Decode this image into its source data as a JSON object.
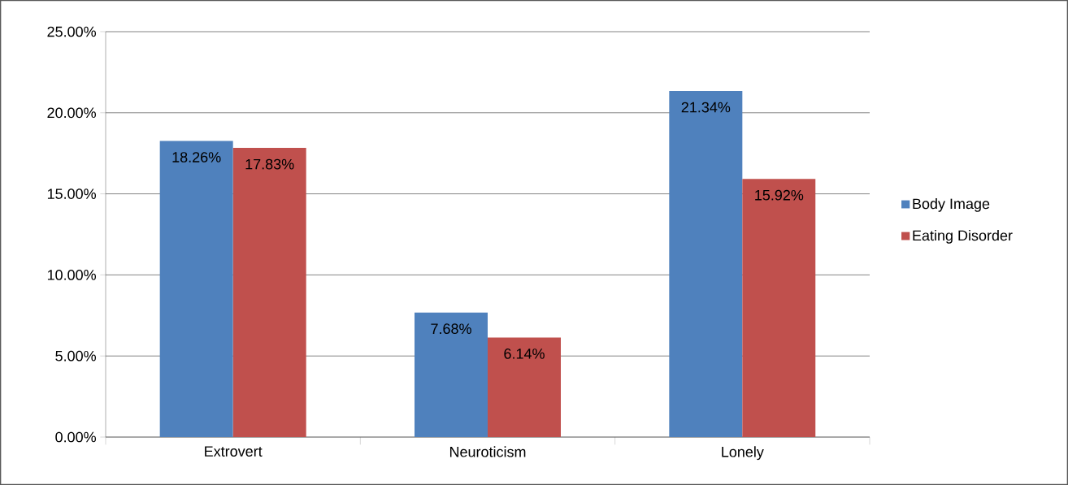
{
  "chart_data": {
    "type": "bar",
    "categories": [
      "Extrovert",
      "Neuroticism",
      "Lonely"
    ],
    "series": [
      {
        "name": "Body Image",
        "color": "#4f81bd",
        "values": [
          18.26,
          7.68,
          21.34
        ],
        "value_labels": [
          "18.26%",
          "7.68%",
          "21.34%"
        ]
      },
      {
        "name": "Eating Disorder",
        "color": "#c0504d",
        "values": [
          17.83,
          6.14,
          15.92
        ],
        "value_labels": [
          "17.83%",
          "6.14%",
          "15.92%"
        ]
      }
    ],
    "ylim": [
      0,
      25
    ],
    "yticks": [
      {
        "value": 0,
        "label": "0.00%"
      },
      {
        "value": 5,
        "label": "5.00%"
      },
      {
        "value": 10,
        "label": "10.00%"
      },
      {
        "value": 15,
        "label": "15.00%"
      },
      {
        "value": 20,
        "label": "20.00%"
      },
      {
        "value": 25,
        "label": "25.00%"
      }
    ],
    "grid": "y",
    "legend": "right"
  }
}
